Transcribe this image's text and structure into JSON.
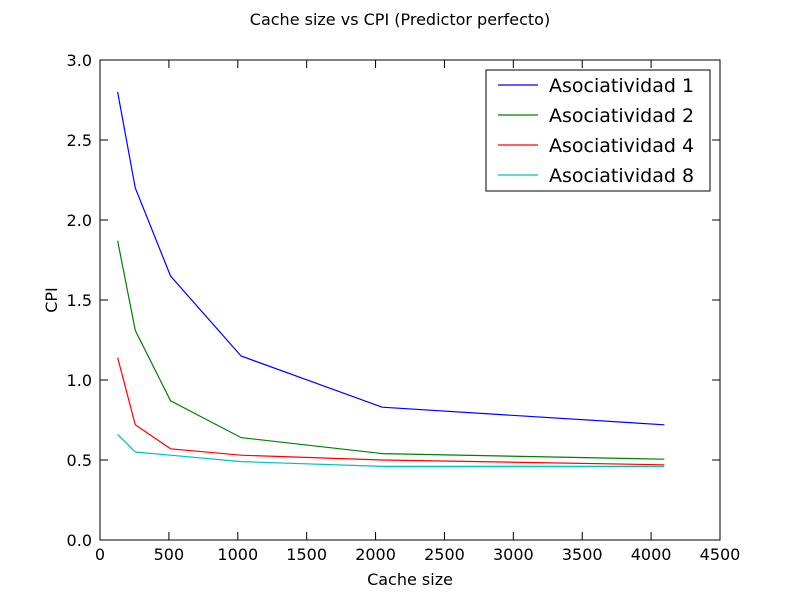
{
  "chart_data": {
    "type": "line",
    "title": "Cache size vs CPI (Predictor perfecto)",
    "xlabel": "Cache size",
    "ylabel": "CPI",
    "xlim": [
      0,
      4500
    ],
    "ylim": [
      0.0,
      3.0
    ],
    "xticks": [
      "0",
      "500",
      "1000",
      "1500",
      "2000",
      "2500",
      "3000",
      "3500",
      "4000",
      "4500"
    ],
    "yticks": [
      "0.0",
      "0.5",
      "1.0",
      "1.5",
      "2.0",
      "2.5",
      "3.0"
    ],
    "grid": false,
    "legend_position": "top-right",
    "x": [
      128,
      256,
      512,
      1024,
      2048,
      4096
    ],
    "series": [
      {
        "name": "Asociatividad 1",
        "color": "#0000ff",
        "values": [
          2.8,
          2.2,
          1.65,
          1.15,
          0.83,
          0.72
        ]
      },
      {
        "name": "Asociatividad 2",
        "color": "#008000",
        "values": [
          1.87,
          1.31,
          0.87,
          0.64,
          0.54,
          0.505
        ]
      },
      {
        "name": "Asociatividad 4",
        "color": "#ff0000",
        "values": [
          1.14,
          0.72,
          0.57,
          0.53,
          0.5,
          0.47
        ]
      },
      {
        "name": "Asociatividad 8",
        "color": "#00bfbf",
        "values": [
          0.66,
          0.55,
          0.53,
          0.49,
          0.46,
          0.46
        ]
      }
    ]
  }
}
